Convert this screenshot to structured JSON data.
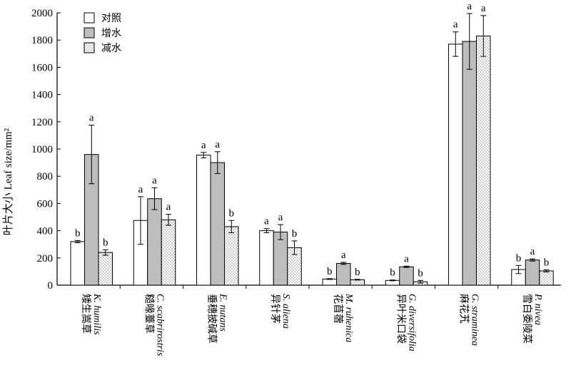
{
  "chart_data": {
    "type": "bar",
    "ylabel": "叶片大小 Leaf size/mm²",
    "ylim": [
      0,
      2000
    ],
    "yticks": [
      0,
      200,
      400,
      600,
      800,
      1000,
      1200,
      1400,
      1600,
      1800,
      2000
    ],
    "grid": false,
    "legend_position": "top-left",
    "categories": [
      {
        "cn": "矮生嵩草",
        "latin": "K. humilis"
      },
      {
        "cn": "糙喙薹草",
        "latin": "C. scabrirostris"
      },
      {
        "cn": "垂穗披碱草",
        "latin": "E. nutans"
      },
      {
        "cn": "异针茅",
        "latin": "S. aliena"
      },
      {
        "cn": "花苜蓿",
        "latin": "M. ruhenica"
      },
      {
        "cn": "异叶米口袋",
        "latin": "G. diversifolia"
      },
      {
        "cn": "麻花艽",
        "latin": "G. straminea"
      },
      {
        "cn": "雪白委陵菜",
        "latin": "P. nivea"
      }
    ],
    "series": [
      {
        "name": "对照",
        "fill": "#ffffff",
        "pattern": "none",
        "values": [
          320,
          475,
          955,
          400,
          45,
          35,
          1770,
          115
        ],
        "errors": [
          8,
          175,
          20,
          15,
          3,
          3,
          90,
          30
        ],
        "letters": [
          "b",
          "a",
          "a",
          "a",
          "b",
          "b",
          "a",
          "b"
        ]
      },
      {
        "name": "增水",
        "fill": "#bdbdbd",
        "pattern": "none",
        "values": [
          960,
          635,
          900,
          390,
          160,
          135,
          1790,
          185
        ],
        "errors": [
          215,
          80,
          80,
          55,
          8,
          5,
          205,
          8
        ],
        "letters": [
          "a",
          "a",
          "a",
          "a",
          "a",
          "a",
          "a",
          "a"
        ]
      },
      {
        "name": "减水",
        "fill": "#ffffff",
        "pattern": "dots",
        "values": [
          240,
          480,
          430,
          275,
          40,
          25,
          1830,
          105
        ],
        "errors": [
          20,
          40,
          45,
          50,
          3,
          10,
          150,
          8
        ],
        "letters": [
          "b",
          "a",
          "b",
          "b",
          "b",
          "b",
          "a",
          "b"
        ]
      }
    ]
  }
}
